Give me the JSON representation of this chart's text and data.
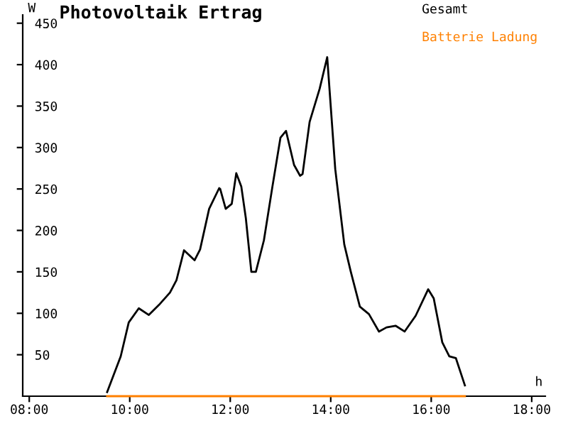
{
  "chart_data": {
    "type": "line",
    "title": "Photovoltaik Ertrag",
    "xlabel": "h",
    "ylabel": "W",
    "series": [
      {
        "name": "Gesamt",
        "color": "#000000",
        "x": [
          9.55,
          9.82,
          9.98,
          10.18,
          10.38,
          10.58,
          10.8,
          10.93,
          11.08,
          11.29,
          11.4,
          11.58,
          11.78,
          11.8,
          11.91,
          12.03,
          12.12,
          12.22,
          12.31,
          12.42,
          12.51,
          12.67,
          12.84,
          13.0,
          13.11,
          13.27,
          13.39,
          13.44,
          13.58,
          13.78,
          13.93,
          14.09,
          14.27,
          14.4,
          14.58,
          14.76,
          14.96,
          15.11,
          15.29,
          15.47,
          15.69,
          15.94,
          16.05,
          16.22,
          16.36,
          16.49,
          16.67
        ],
        "values": [
          5,
          48,
          89,
          106,
          98,
          110,
          125,
          140,
          176,
          164,
          177,
          226,
          251,
          250,
          226,
          232,
          269,
          253,
          215,
          150,
          150,
          188,
          253,
          312,
          320,
          279,
          266,
          268,
          331,
          371,
          409,
          274,
          183,
          150,
          108,
          99,
          78,
          83,
          85,
          78,
          97,
          129,
          118,
          65,
          48,
          46,
          13
        ]
      },
      {
        "name": "Batterie Ladung",
        "color": "#ff8000",
        "x": [
          9.55,
          16.67
        ],
        "values": [
          0,
          0
        ]
      }
    ],
    "xlim": [
      7.87,
      18.27
    ],
    "ylim": [
      0,
      460
    ],
    "xticks": [
      {
        "value": 8,
        "label": "08:00"
      },
      {
        "value": 10,
        "label": "10:00"
      },
      {
        "value": 12,
        "label": "12:00"
      },
      {
        "value": 14,
        "label": "14:00"
      },
      {
        "value": 16,
        "label": "16:00"
      },
      {
        "value": 18,
        "label": "18:00"
      }
    ],
    "yticks": [
      50,
      100,
      150,
      200,
      250,
      300,
      350,
      400,
      450
    ],
    "grid": false,
    "legend": "top right",
    "marker": "none",
    "line_style": "solid"
  }
}
